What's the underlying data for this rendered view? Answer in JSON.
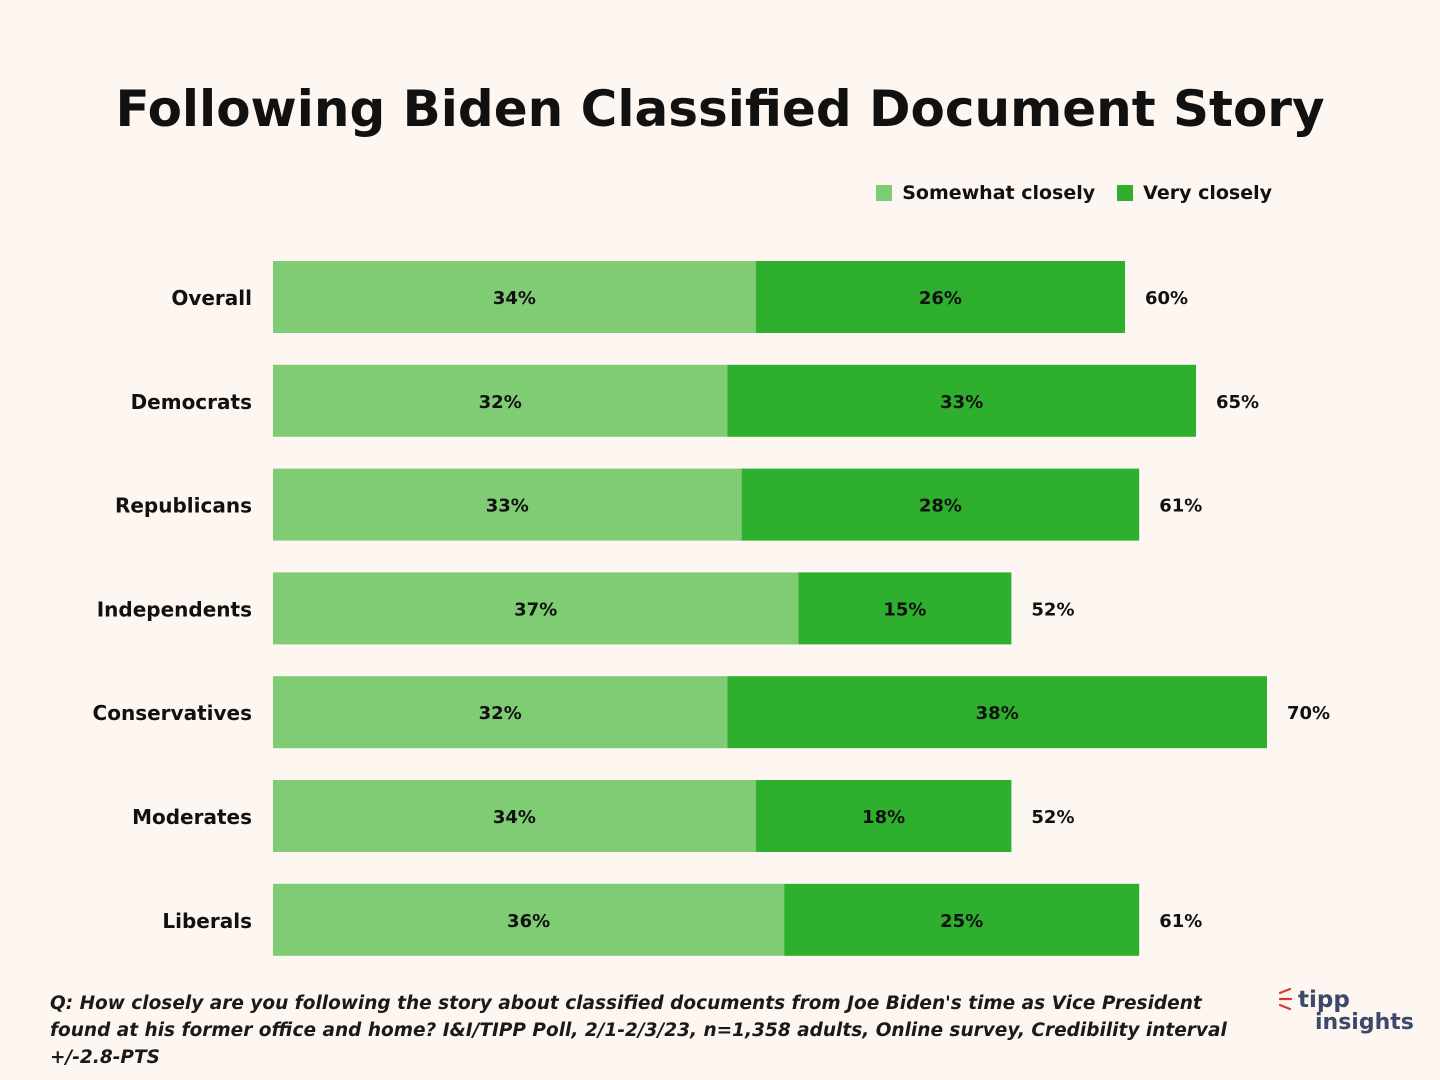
{
  "chart_data": {
    "type": "bar",
    "orientation": "horizontal",
    "stacked": true,
    "title": "Following Biden Classified Document Story",
    "categories": [
      "Overall",
      "Democrats",
      "Republicans",
      "Independents",
      "Conservatives",
      "Moderates",
      "Liberals"
    ],
    "series": [
      {
        "name": "Somewhat closely",
        "values": [
          34,
          32,
          33,
          37,
          32,
          34,
          36
        ],
        "color": "#80cc74"
      },
      {
        "name": "Very closely",
        "values": [
          26,
          33,
          28,
          15,
          38,
          18,
          25
        ],
        "color": "#2eaf2e"
      }
    ],
    "totals": [
      60,
      65,
      61,
      52,
      70,
      52,
      61
    ],
    "value_suffix": "%",
    "legend_position": "top-right",
    "grid": false
  },
  "footnote": {
    "line1": "Q: How closely are you following the story about classified documents from Joe Biden's time as Vice President",
    "line2": "found at his former office and home? I&I/TIPP Poll, 2/1-2/3/23, n=1,358 adults, Online survey, Credibility interval +/-2.8-PTS"
  },
  "logo": {
    "line1": "tipp",
    "line2": "insights",
    "accent_color": "#d9382f",
    "text_color": "#3b4a6b"
  },
  "background_color": "#fdf6f1"
}
